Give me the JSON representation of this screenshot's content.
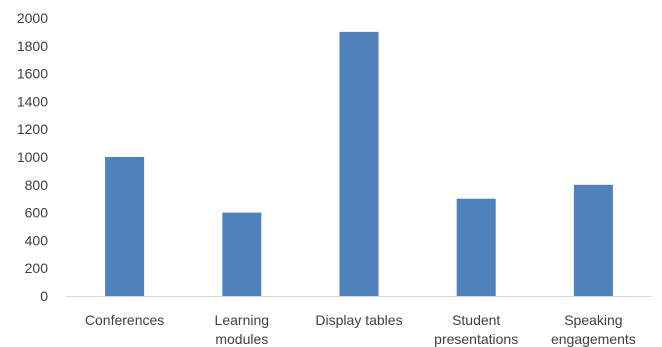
{
  "chart_data": {
    "type": "bar",
    "title": "",
    "xlabel": "",
    "ylabel": "",
    "ylim": [
      0,
      2000
    ],
    "y_ticks": [
      0,
      200,
      400,
      600,
      800,
      1000,
      1200,
      1400,
      1600,
      1800,
      2000
    ],
    "y_tick_labels": [
      "0",
      "200",
      "400",
      "600",
      "800",
      "1000",
      "1200",
      "1400",
      "1600",
      "1800",
      "2000"
    ],
    "grid": false,
    "legend": "none",
    "categories": [
      [
        "Conferences"
      ],
      [
        "Learning",
        "modules"
      ],
      [
        "Display tables"
      ],
      [
        "Student",
        "presentations"
      ],
      [
        "Speaking",
        "engagements"
      ]
    ],
    "values": [
      1000,
      600,
      1900,
      700,
      800
    ],
    "bar_color": "#4f81bd",
    "axis_color": "#d9d9d9",
    "label_color": "#404040"
  }
}
